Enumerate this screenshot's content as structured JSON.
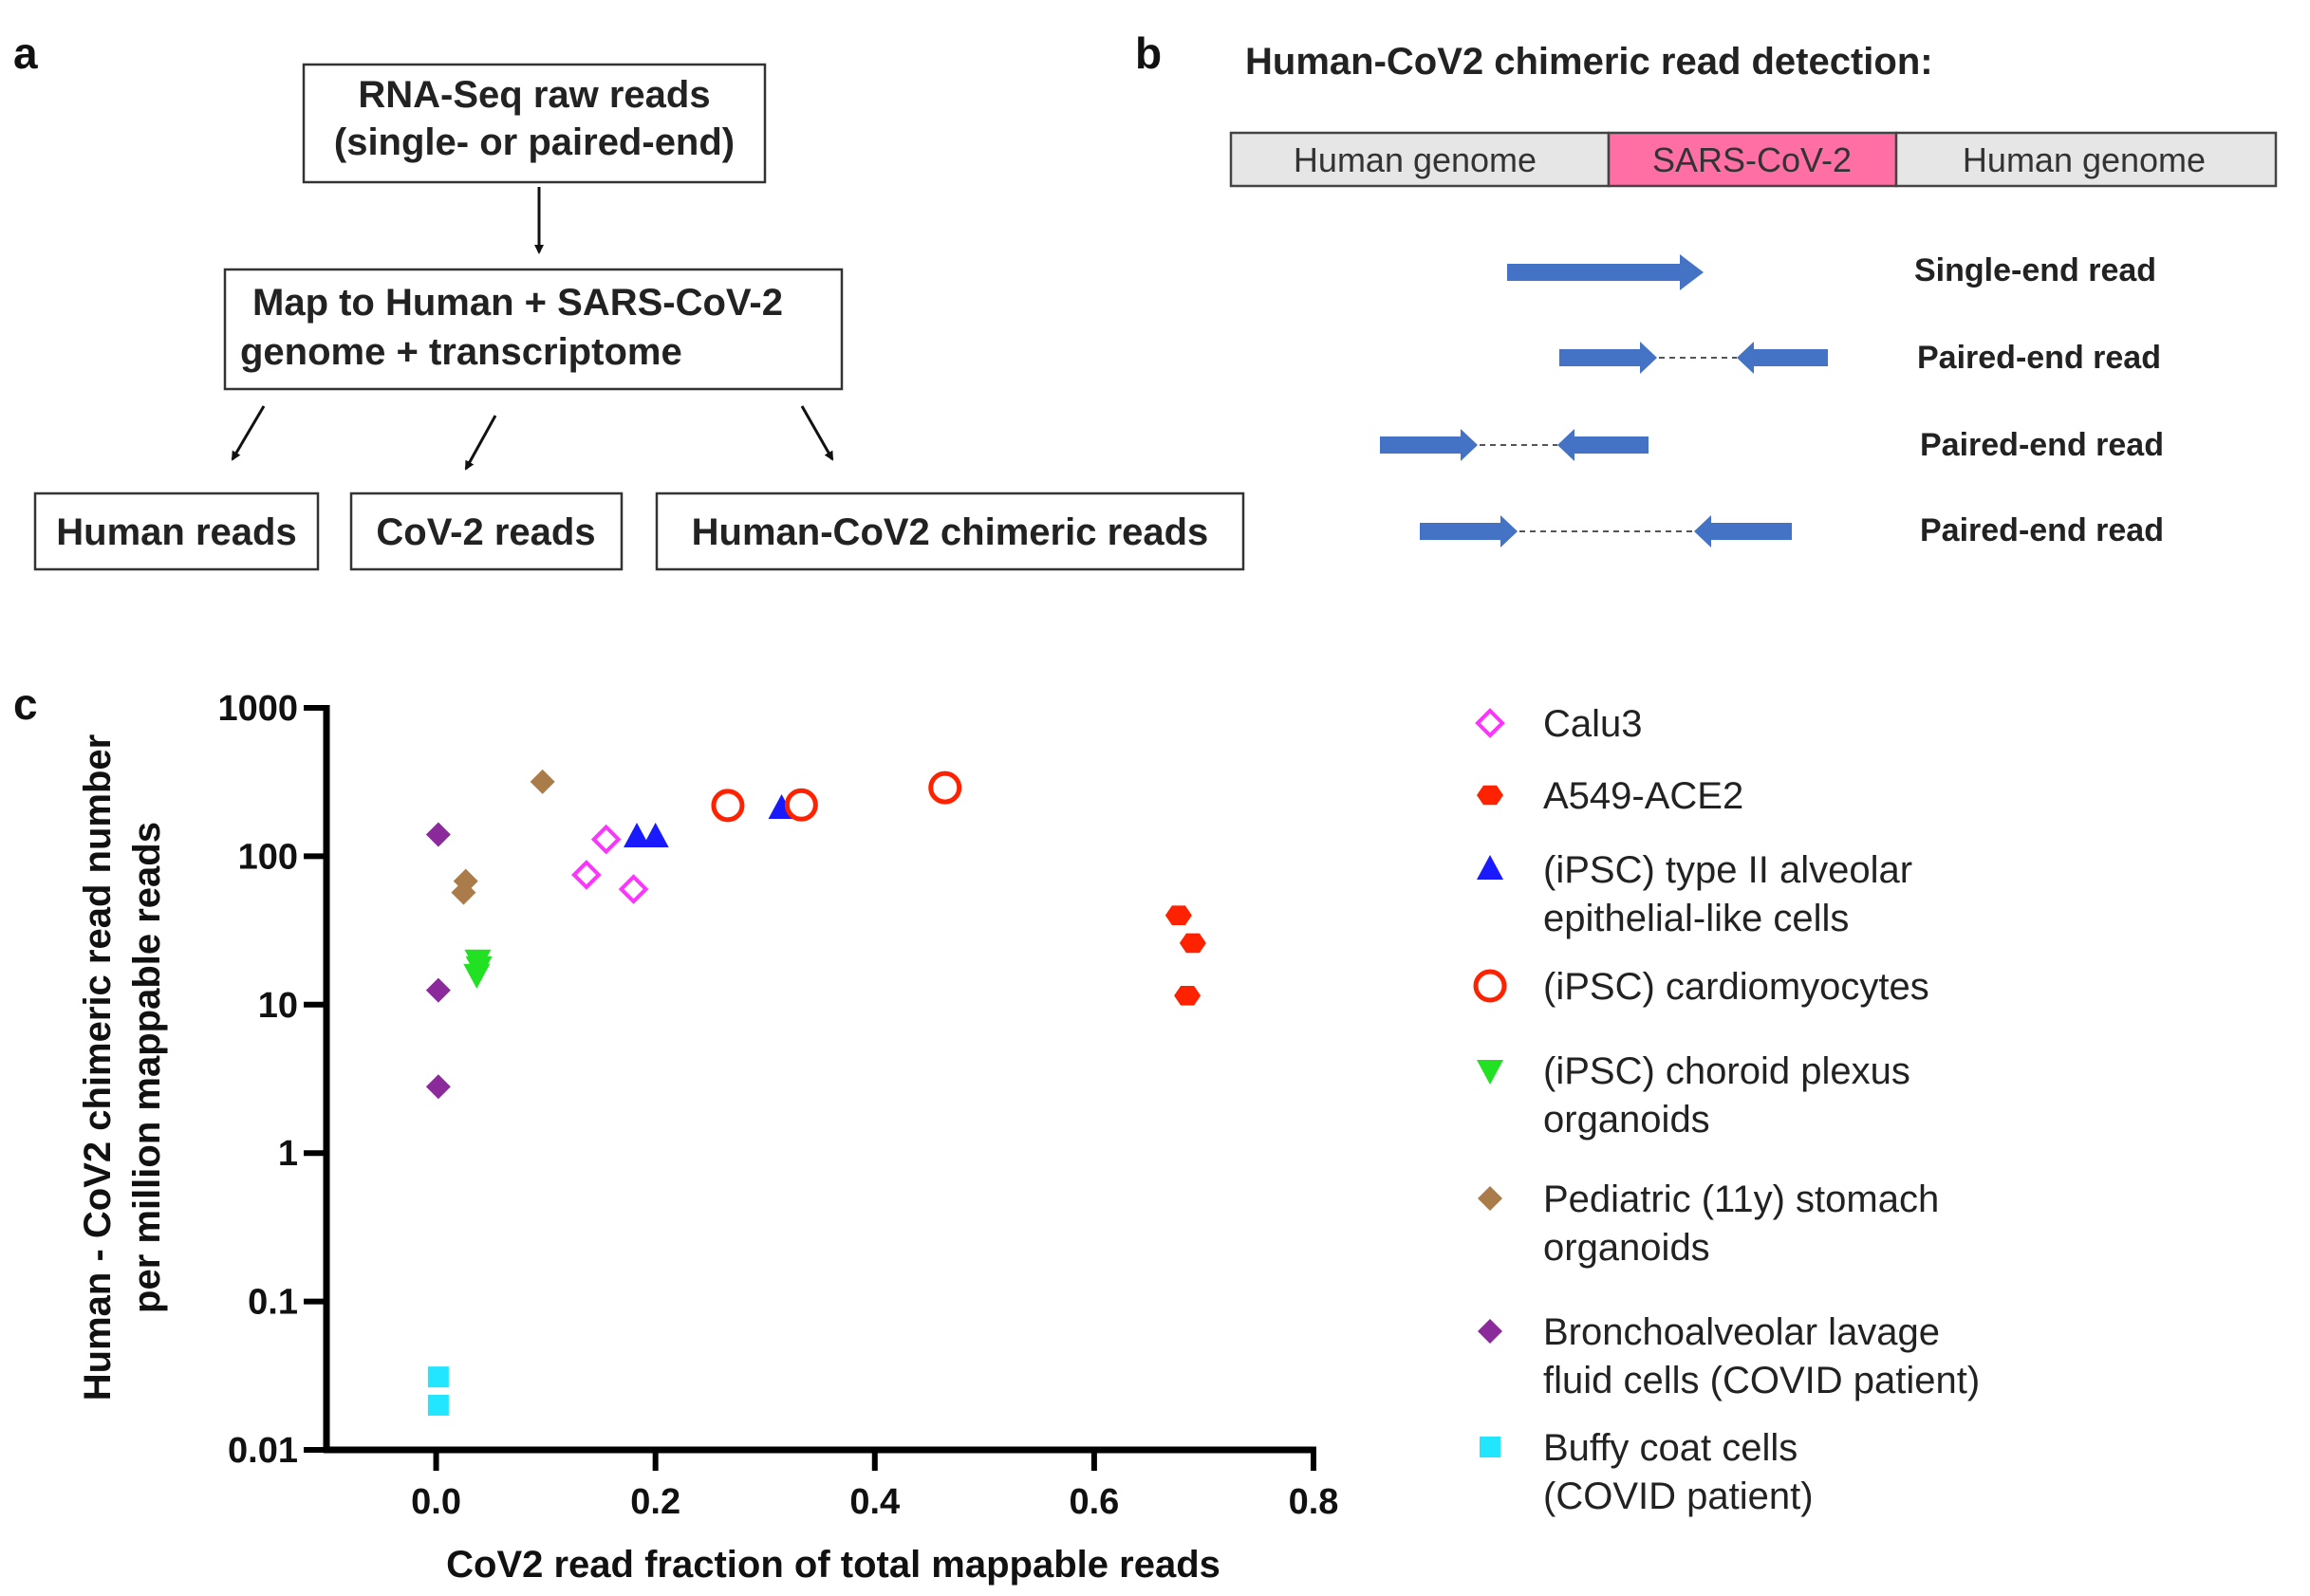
{
  "panels": {
    "a": {
      "letter": "a",
      "top_box": [
        "RNA-Seq raw reads",
        "(single- or paired-end)"
      ],
      "map_box": [
        "Map to Human + SARS-CoV-2",
        "genome + transcriptome"
      ],
      "outputs": [
        "Human reads",
        "CoV-2 reads",
        "Human-CoV2 chimeric reads"
      ]
    },
    "b": {
      "letter": "b",
      "title": "Human-CoV2 chimeric read detection:",
      "genome_segments": [
        "Human genome",
        "SARS-CoV-2",
        "Human genome"
      ],
      "read_labels": [
        "Single-end read",
        "Paired-end read",
        "Paired-end read",
        "Paired-end read"
      ]
    },
    "c": {
      "letter": "c"
    }
  },
  "colors": {
    "human_genome": "#e6e6e6",
    "sars_cov2": "#ff6fa4",
    "read_arrow": "#4472c4"
  },
  "chart_data": {
    "type": "scatter",
    "xlabel": "CoV2 read fraction of total mappable reads",
    "ylabel": [
      "Human - CoV2 chimeric read number",
      "per million mappable reads"
    ],
    "xlim": [
      -0.1,
      0.8
    ],
    "ylim": [
      0.01,
      1000
    ],
    "yscale": "log",
    "x_ticks": [
      0.0,
      0.2,
      0.4,
      0.6,
      0.8
    ],
    "x_tick_labels": [
      "0.0",
      "0.2",
      "0.4",
      "0.6",
      "0.8"
    ],
    "y_ticks": [
      1000,
      100,
      10,
      1,
      0.1,
      0.01
    ],
    "y_tick_labels": [
      "1000",
      "100",
      "10",
      "1",
      "0.1",
      "0.01"
    ],
    "legend_position": "right",
    "series": [
      {
        "name": "Calu3",
        "marker": "diamond-open",
        "color": "#ff33ff",
        "points": [
          [
            0.137,
            75
          ],
          [
            0.155,
            130
          ],
          [
            0.18,
            60
          ]
        ]
      },
      {
        "name": "A549-ACE2",
        "marker": "hexagon",
        "color": "#ff2200",
        "points": [
          [
            0.677,
            40
          ],
          [
            0.69,
            26
          ],
          [
            0.685,
            11.5
          ]
        ]
      },
      {
        "name": "(iPSC) type II alveolar epithelial-like cells",
        "marker": "triangle-up",
        "color": "#1a1aff",
        "points": [
          [
            0.183,
            135
          ],
          [
            0.2,
            135
          ],
          [
            0.315,
            210
          ]
        ]
      },
      {
        "name": "(iPSC) cardiomyocytes",
        "marker": "circle-open",
        "color": "#ff2200",
        "points": [
          [
            0.266,
            220
          ],
          [
            0.333,
            222
          ],
          [
            0.464,
            290
          ]
        ]
      },
      {
        "name": "(iPSC) choroid plexus organoids",
        "marker": "triangle-down",
        "color": "#22e022",
        "points": [
          [
            0.038,
            20
          ],
          [
            0.037,
            16
          ],
          [
            0.039,
            18
          ]
        ]
      },
      {
        "name": "Pediatric (11y) stomach organoids",
        "marker": "diamond",
        "color": "#aa7c4a",
        "points": [
          [
            0.097,
            318
          ],
          [
            0.027,
            68
          ],
          [
            0.025,
            57
          ]
        ]
      },
      {
        "name": "Bronchoalveolar lavage fluid cells (COVID patient)",
        "marker": "diamond",
        "color": "#8b2a9b",
        "points": [
          [
            0.002,
            140
          ],
          [
            0.002,
            12.5
          ],
          [
            0.002,
            2.8
          ]
        ]
      },
      {
        "name": "Buffy coat cells (COVID patient)",
        "marker": "square",
        "color": "#22e6ff",
        "points": [
          [
            0.002,
            0.031
          ],
          [
            0.002,
            0.02
          ]
        ]
      }
    ],
    "legend": [
      {
        "lines": [
          "Calu3"
        ]
      },
      {
        "lines": [
          "A549-ACE2"
        ]
      },
      {
        "lines": [
          "(iPSC) type II alveolar",
          "epithelial-like cells"
        ]
      },
      {
        "lines": [
          "(iPSC) cardiomyocytes"
        ]
      },
      {
        "lines": [
          "(iPSC) choroid plexus",
          "organoids"
        ]
      },
      {
        "lines": [
          "Pediatric (11y) stomach",
          "organoids"
        ]
      },
      {
        "lines": [
          "Bronchoalveolar lavage",
          "fluid cells (COVID patient)"
        ]
      },
      {
        "lines": [
          "Buffy coat cells",
          "(COVID patient)"
        ]
      }
    ]
  }
}
